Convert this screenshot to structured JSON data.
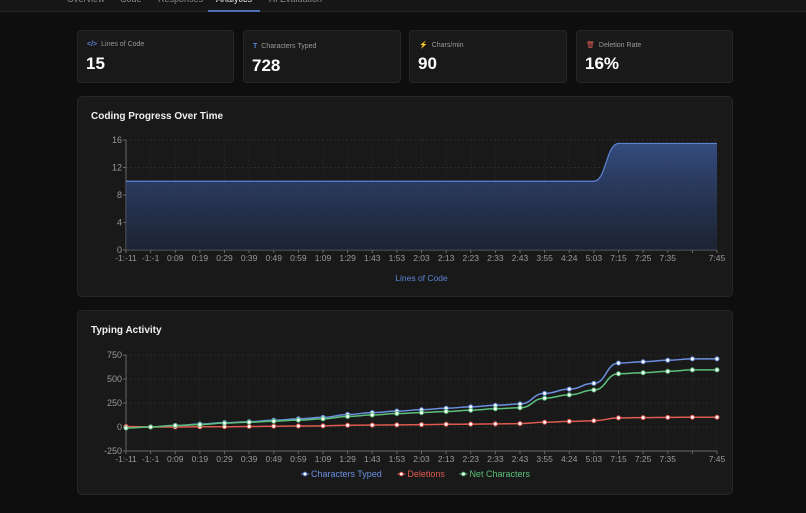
{
  "tabs": [
    {
      "label": "Overview"
    },
    {
      "label": "Code"
    },
    {
      "label": "Responses"
    },
    {
      "label": "Analytics",
      "active": true
    },
    {
      "label": "AI Evaluation"
    }
  ],
  "stats": [
    {
      "icon": "code-icon",
      "label": "Lines of Code",
      "value": "15",
      "color": "#5b84d6"
    },
    {
      "icon": "text-icon",
      "label": "Characters Typed",
      "value": "728",
      "color": "#5b84d6"
    },
    {
      "icon": "lightning-icon",
      "label": "Chars/min",
      "value": "90",
      "color": "#e0b040"
    },
    {
      "icon": "trash-icon",
      "label": "Deletion Rate",
      "value": "16%",
      "color": "#e05a50"
    }
  ],
  "chart_data": [
    {
      "type": "area",
      "title": "Coding Progress Over Time",
      "categories": [
        "-1:-11",
        "-1:-1",
        "0:09",
        "0:19",
        "0:29",
        "0:39",
        "0:49",
        "0:59",
        "1:09",
        "1:29",
        "1:43",
        "1:53",
        "2:03",
        "2:13",
        "2:23",
        "2:33",
        "2:43",
        "3:55",
        "4:24",
        "5:03",
        "7:15",
        "7:25",
        "7:35",
        "",
        "7:45"
      ],
      "series": [
        {
          "name": "Lines of Code",
          "color": "#5b84d6",
          "values": [
            10,
            10,
            10,
            10,
            10,
            10,
            10,
            10,
            10,
            10,
            10,
            10,
            10,
            10,
            10,
            10,
            10,
            10,
            10,
            10,
            15.5,
            15.5,
            15.5,
            15.5,
            15.5
          ]
        }
      ],
      "yticks": [
        0,
        4,
        8,
        12,
        16
      ],
      "ylim": [
        0,
        16
      ],
      "grid": true,
      "legend": "bottom"
    },
    {
      "type": "line",
      "title": "Typing Activity",
      "categories": [
        "-1:-11",
        "-1:-1",
        "0:09",
        "0:19",
        "0:29",
        "0:39",
        "0:49",
        "0:59",
        "1:09",
        "1:29",
        "1:43",
        "1:53",
        "2:03",
        "2:13",
        "2:23",
        "2:33",
        "2:43",
        "3:55",
        "4:24",
        "5:03",
        "7:15",
        "7:25",
        "7:35",
        "",
        "7:45"
      ],
      "series": [
        {
          "name": "Characters Typed",
          "color": "#6b8fe0",
          "values": [
            -5,
            0,
            15,
            30,
            45,
            55,
            70,
            85,
            100,
            130,
            150,
            165,
            180,
            195,
            210,
            225,
            240,
            350,
            395,
            455,
            665,
            680,
            695,
            710,
            710
          ]
        },
        {
          "name": "Deletions",
          "color": "#e05a50",
          "values": [
            5,
            0,
            0,
            2,
            3,
            5,
            8,
            10,
            12,
            18,
            20,
            22,
            25,
            28,
            30,
            32,
            35,
            50,
            58,
            65,
            95,
            98,
            100,
            102,
            102
          ]
        },
        {
          "name": "Net Characters",
          "color": "#5cc07a",
          "values": [
            -10,
            0,
            15,
            25,
            40,
            50,
            60,
            72,
            85,
            110,
            125,
            140,
            150,
            162,
            175,
            190,
            200,
            300,
            335,
            385,
            555,
            565,
            580,
            595,
            595
          ]
        }
      ],
      "yticks": [
        -250,
        0,
        250,
        500,
        750
      ],
      "ylim": [
        -250,
        750
      ],
      "grid": true,
      "legend": "bottom"
    }
  ]
}
